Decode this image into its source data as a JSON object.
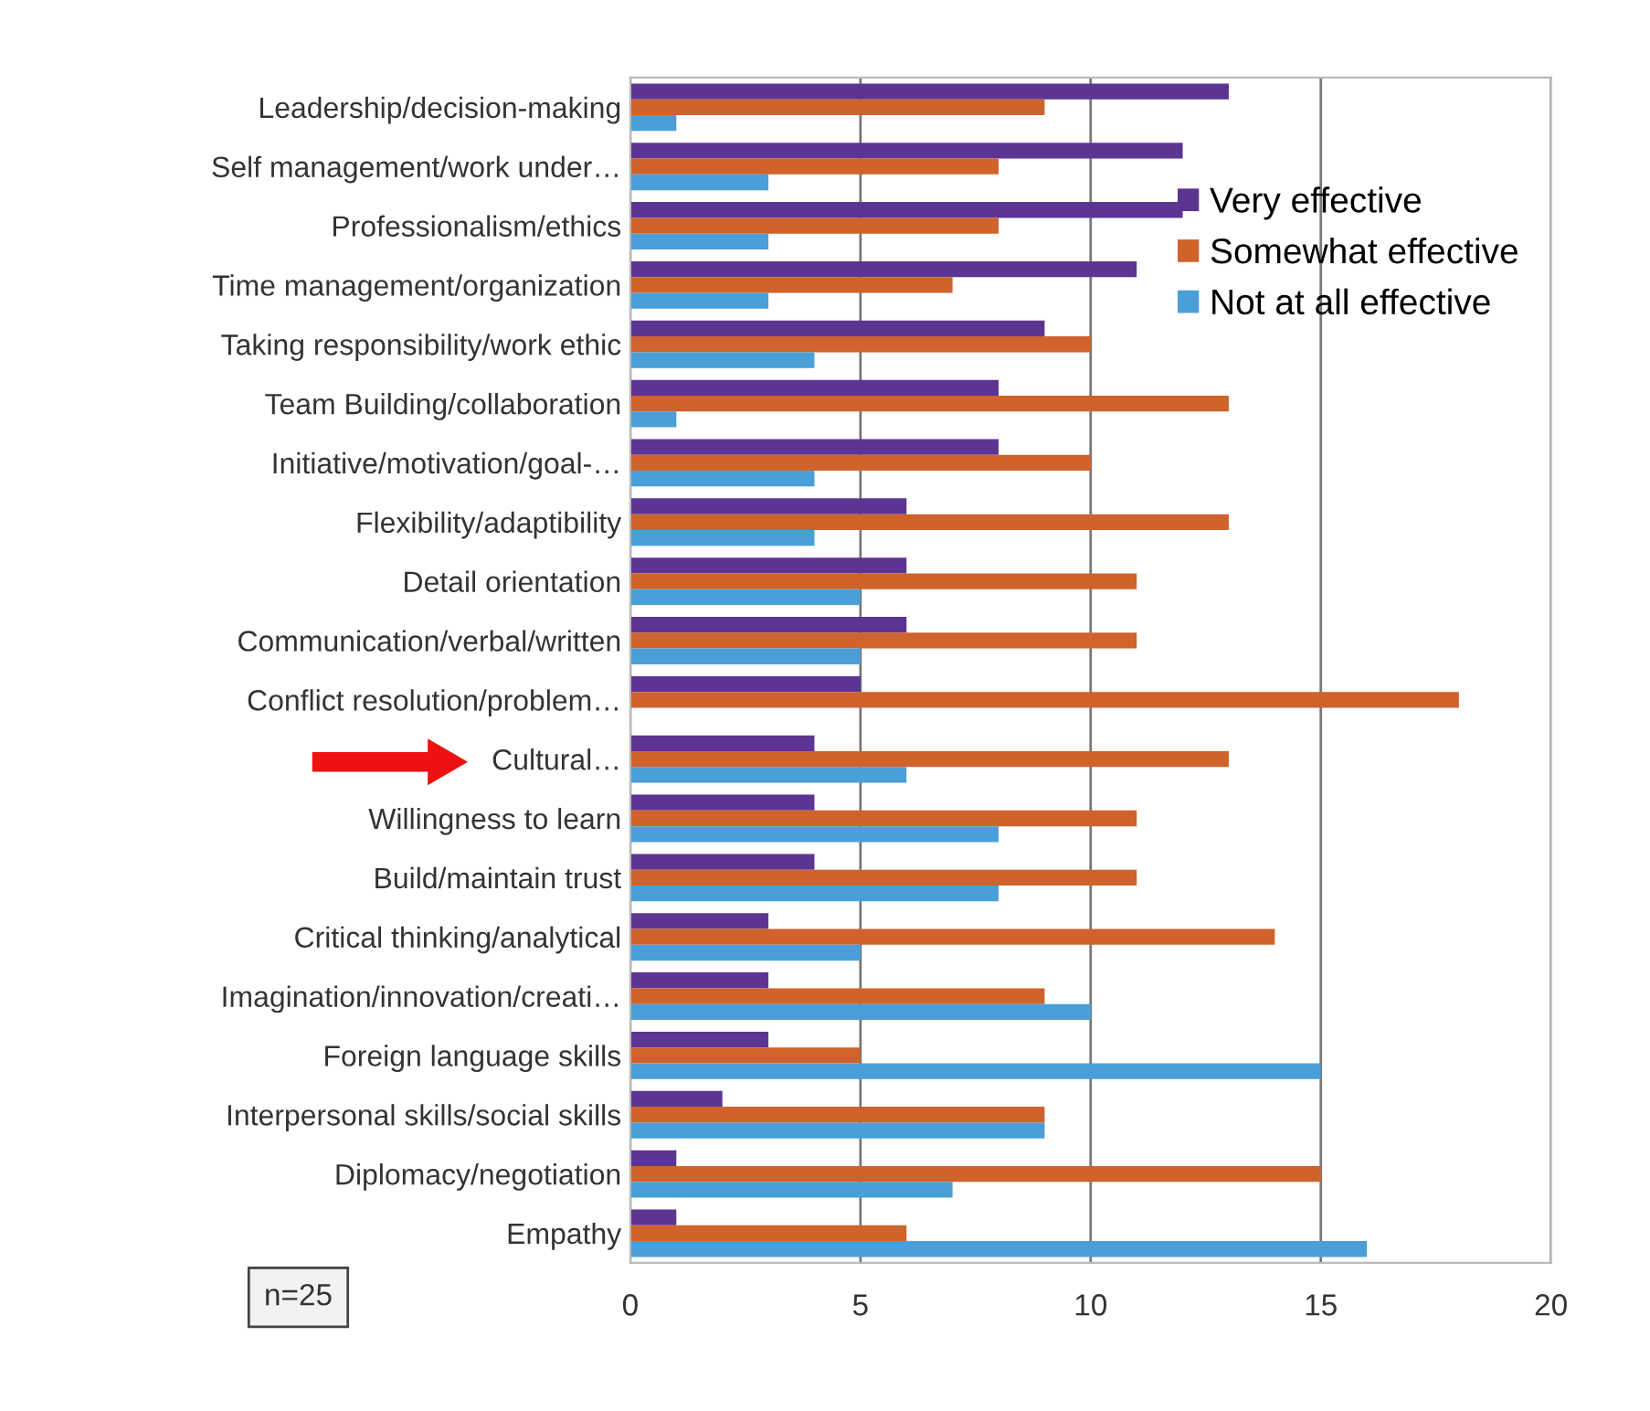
{
  "chart_data": {
    "type": "bar",
    "orientation": "horizontal",
    "categories": [
      "Leadership/decision-making",
      "Self management/work under…",
      "Professionalism/ethics",
      "Time management/organization",
      "Taking responsibility/work ethic",
      "Team Building/collaboration",
      "Initiative/motivation/goal-…",
      "Flexibility/adaptibility",
      "Detail orientation",
      "Communication/verbal/written",
      "Conflict resolution/problem…",
      "Cultural…",
      "Willingness to learn",
      "Build/maintain trust",
      "Critical thinking/analytical",
      "Imagination/innovation/creati…",
      "Foreign language skills",
      "Interpersonal skills/social skills",
      "Diplomacy/negotiation",
      "Empathy"
    ],
    "series": [
      {
        "name": "Very effective",
        "color": "#5c3592",
        "values": [
          13,
          12,
          12,
          11,
          9,
          8,
          8,
          6,
          6,
          6,
          5,
          4,
          4,
          4,
          3,
          3,
          3,
          2,
          1,
          1
        ]
      },
      {
        "name": "Somewhat effective",
        "color": "#d0622c",
        "values": [
          9,
          8,
          8,
          7,
          10,
          13,
          10,
          13,
          11,
          11,
          18,
          13,
          11,
          11,
          14,
          9,
          5,
          9,
          15,
          6
        ]
      },
      {
        "name": "Not at all effective",
        "color": "#4a9fd8",
        "values": [
          1,
          3,
          3,
          3,
          4,
          1,
          4,
          4,
          5,
          5,
          0,
          6,
          8,
          8,
          5,
          10,
          15,
          9,
          7,
          16
        ]
      }
    ],
    "xlim": [
      0,
      20
    ],
    "xticks": [
      0,
      5,
      10,
      15,
      20
    ],
    "grid": "x",
    "legend": "top right",
    "annotations": [
      "n=25"
    ]
  }
}
